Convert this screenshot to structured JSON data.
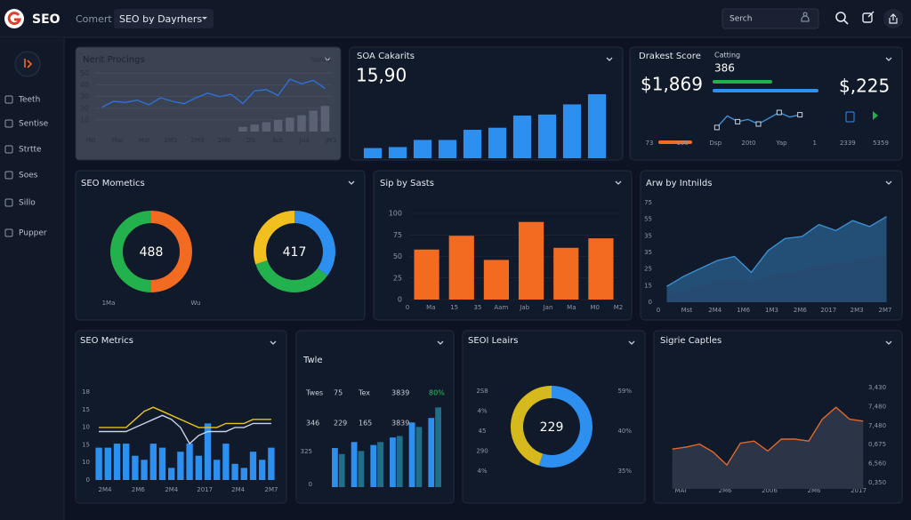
{
  "header": {
    "brand": "SEO",
    "menu": "Comert",
    "dropdown": "SEO by Dayrhers",
    "search": "Serch"
  },
  "sidebar": {
    "items": [
      "Teeth",
      "Sentise",
      "Strtte",
      "Soes",
      "Sillo",
      "Pupper"
    ]
  },
  "chart_data": [
    {
      "type": "combo",
      "title": "Nerit Procings",
      "annotation": "Sorob",
      "ylim": [
        0,
        55
      ],
      "yticks": [
        10,
        20,
        30,
        40,
        50
      ],
      "xlabels": [
        "Mit",
        "MaI",
        "MaI",
        "2M3",
        "2M3",
        "2M6",
        "DS",
        "Sot",
        "Ju3",
        "JM3"
      ],
      "series": [
        {
          "kind": "bar",
          "color": "#596172",
          "values": [
            null,
            null,
            null,
            null,
            null,
            null,
            null,
            null,
            null,
            null,
            null,
            null,
            4,
            6,
            8,
            10,
            12,
            14,
            18,
            22
          ]
        },
        {
          "kind": "line",
          "color": "#2f6fd6",
          "values": [
            21,
            26,
            25,
            27,
            23,
            29,
            26,
            24,
            29,
            33,
            30,
            32,
            24,
            35,
            36,
            31,
            45,
            41,
            44,
            37
          ]
        }
      ]
    },
    {
      "type": "bar",
      "title": "SOA Cakarits",
      "value": "15,90",
      "ylim": [
        0,
        70
      ],
      "series": [
        {
          "color": "#2d8ff0",
          "values": [
            10,
            11,
            18,
            18,
            28,
            30,
            42,
            43,
            53,
            63
          ]
        }
      ]
    },
    {
      "type": "line",
      "title": "Drakest Score",
      "value": "$1,869",
      "annotation": "Catting",
      "sub_value": "386",
      "value2": "$,225",
      "ylim": [
        0,
        40
      ],
      "xlabels": [
        "73",
        "100",
        "Dsp",
        "20t0",
        "Yap",
        "1",
        "2339",
        "5359"
      ],
      "series": [
        {
          "color": "#3a8fd0",
          "values": [
            4,
            24,
            14,
            18,
            10,
            20,
            30,
            22,
            26
          ]
        }
      ]
    },
    {
      "type": "donut",
      "title": "SEO Mometics",
      "xlabels": [
        "1Ma",
        "Wu"
      ],
      "donuts": [
        {
          "label": "488",
          "segments": [
            {
              "color": "#f26b21",
              "value": 50
            },
            {
              "color": "#22b14c",
              "value": 50
            }
          ]
        },
        {
          "label": "417",
          "segments": [
            {
              "color": "#2d8ff0",
              "value": 35
            },
            {
              "color": "#22b14c",
              "value": 35
            },
            {
              "color": "#f2c01e",
              "value": 30
            }
          ]
        }
      ]
    },
    {
      "type": "bar",
      "title": "Sip by Sasts",
      "ylim": [
        0,
        100
      ],
      "yticks": [
        0,
        25,
        50,
        75,
        100
      ],
      "xlabels": [
        "0",
        "Ma",
        "15",
        "35",
        "Aam",
        "Jab",
        "Jan",
        "Ma",
        "M0",
        "M2"
      ],
      "series": [
        {
          "color": "#f26b21",
          "values": [
            58,
            74,
            46,
            90,
            60,
            71
          ]
        }
      ]
    },
    {
      "type": "area",
      "title": "Arw by Intnilds",
      "ylim": [
        0,
        100
      ],
      "ylabels": [
        "75",
        "55",
        "35",
        "35",
        "25",
        "15",
        "0"
      ],
      "xlabels": [
        "0",
        "Mst",
        "2M4",
        "1M6",
        "1M3",
        "2M6",
        "2017",
        "2M3",
        "2M7"
      ],
      "series": [
        {
          "color": "#3a8fd0",
          "values": [
            16,
            26,
            34,
            42,
            46,
            30,
            52,
            64,
            66,
            78,
            72,
            82,
            76,
            86
          ]
        },
        {
          "color": "#2b4a70",
          "values": [
            8,
            10,
            16,
            20,
            22,
            18,
            26,
            28,
            32,
            36,
            38,
            40,
            44,
            48
          ]
        }
      ]
    },
    {
      "type": "combo",
      "title": "SEO Metrics",
      "ylim": [
        0,
        22
      ],
      "ylabels": [
        "18",
        "15",
        "10",
        "15",
        "10",
        "0"
      ],
      "xlabels": [
        "2M4",
        "2M6",
        "2M4",
        "2017",
        "2M4",
        "2M7"
      ],
      "series": [
        {
          "kind": "bar",
          "color": "#2d8ff0",
          "values": [
            8,
            8,
            9,
            9,
            6,
            5,
            9,
            8,
            3,
            7,
            9,
            6,
            14,
            5,
            9,
            4,
            3,
            7,
            5,
            8
          ]
        },
        {
          "kind": "line",
          "color": "#e8c21e",
          "values": [
            13,
            13,
            13,
            13,
            15,
            17,
            18,
            17,
            16,
            15,
            14,
            13,
            13,
            13,
            14,
            14,
            14,
            15,
            15,
            15
          ]
        },
        {
          "kind": "line",
          "color": "#c8d2e8",
          "values": [
            12,
            12,
            12,
            12,
            13,
            14,
            15,
            16,
            15,
            13,
            9,
            11,
            12,
            12,
            12,
            13,
            13,
            14,
            14,
            14
          ]
        }
      ]
    },
    {
      "type": "combo",
      "title": "Twle",
      "table": [
        [
          "Twes",
          "75",
          "Tex",
          "3839",
          "80%"
        ],
        [
          "346",
          "229",
          "165",
          "3839"
        ]
      ],
      "ylim": [
        0,
        55
      ],
      "ylabels": [
        "325",
        "0"
      ],
      "series": [
        {
          "kind": "bar",
          "color": "#2d8ff0",
          "values": [
            26,
            30,
            28,
            33,
            43,
            46
          ]
        },
        {
          "kind": "bar",
          "color": "#1f6f8a",
          "values": [
            22,
            24,
            30,
            34,
            40,
            53
          ]
        }
      ]
    },
    {
      "type": "donut",
      "title": "SEOI Leairs",
      "left_labels": [
        "2S8",
        "4%",
        "45",
        "290",
        "4%"
      ],
      "right_labels": [
        "59%",
        "40%",
        "35%"
      ],
      "donuts": [
        {
          "label": "229",
          "segments": [
            {
              "color": "#2d8ff0",
              "value": 55
            },
            {
              "color": "#d6b91c",
              "value": 45
            }
          ]
        }
      ]
    },
    {
      "type": "area",
      "title": "Sigrie Captles",
      "ylim": [
        0,
        100
      ],
      "ylabels": [
        "3,430",
        "7,480",
        "7,480",
        "0,675",
        "6,560",
        "0,350"
      ],
      "xlabels": [
        "MAI",
        "2M6",
        "2006",
        "2M6",
        "2017"
      ],
      "series": [
        {
          "color": "#e0672a",
          "fill": "#2c3547",
          "values": [
            40,
            42,
            45,
            37,
            24,
            46,
            48,
            38,
            50,
            50,
            48,
            70,
            82,
            70,
            68
          ]
        }
      ]
    }
  ]
}
